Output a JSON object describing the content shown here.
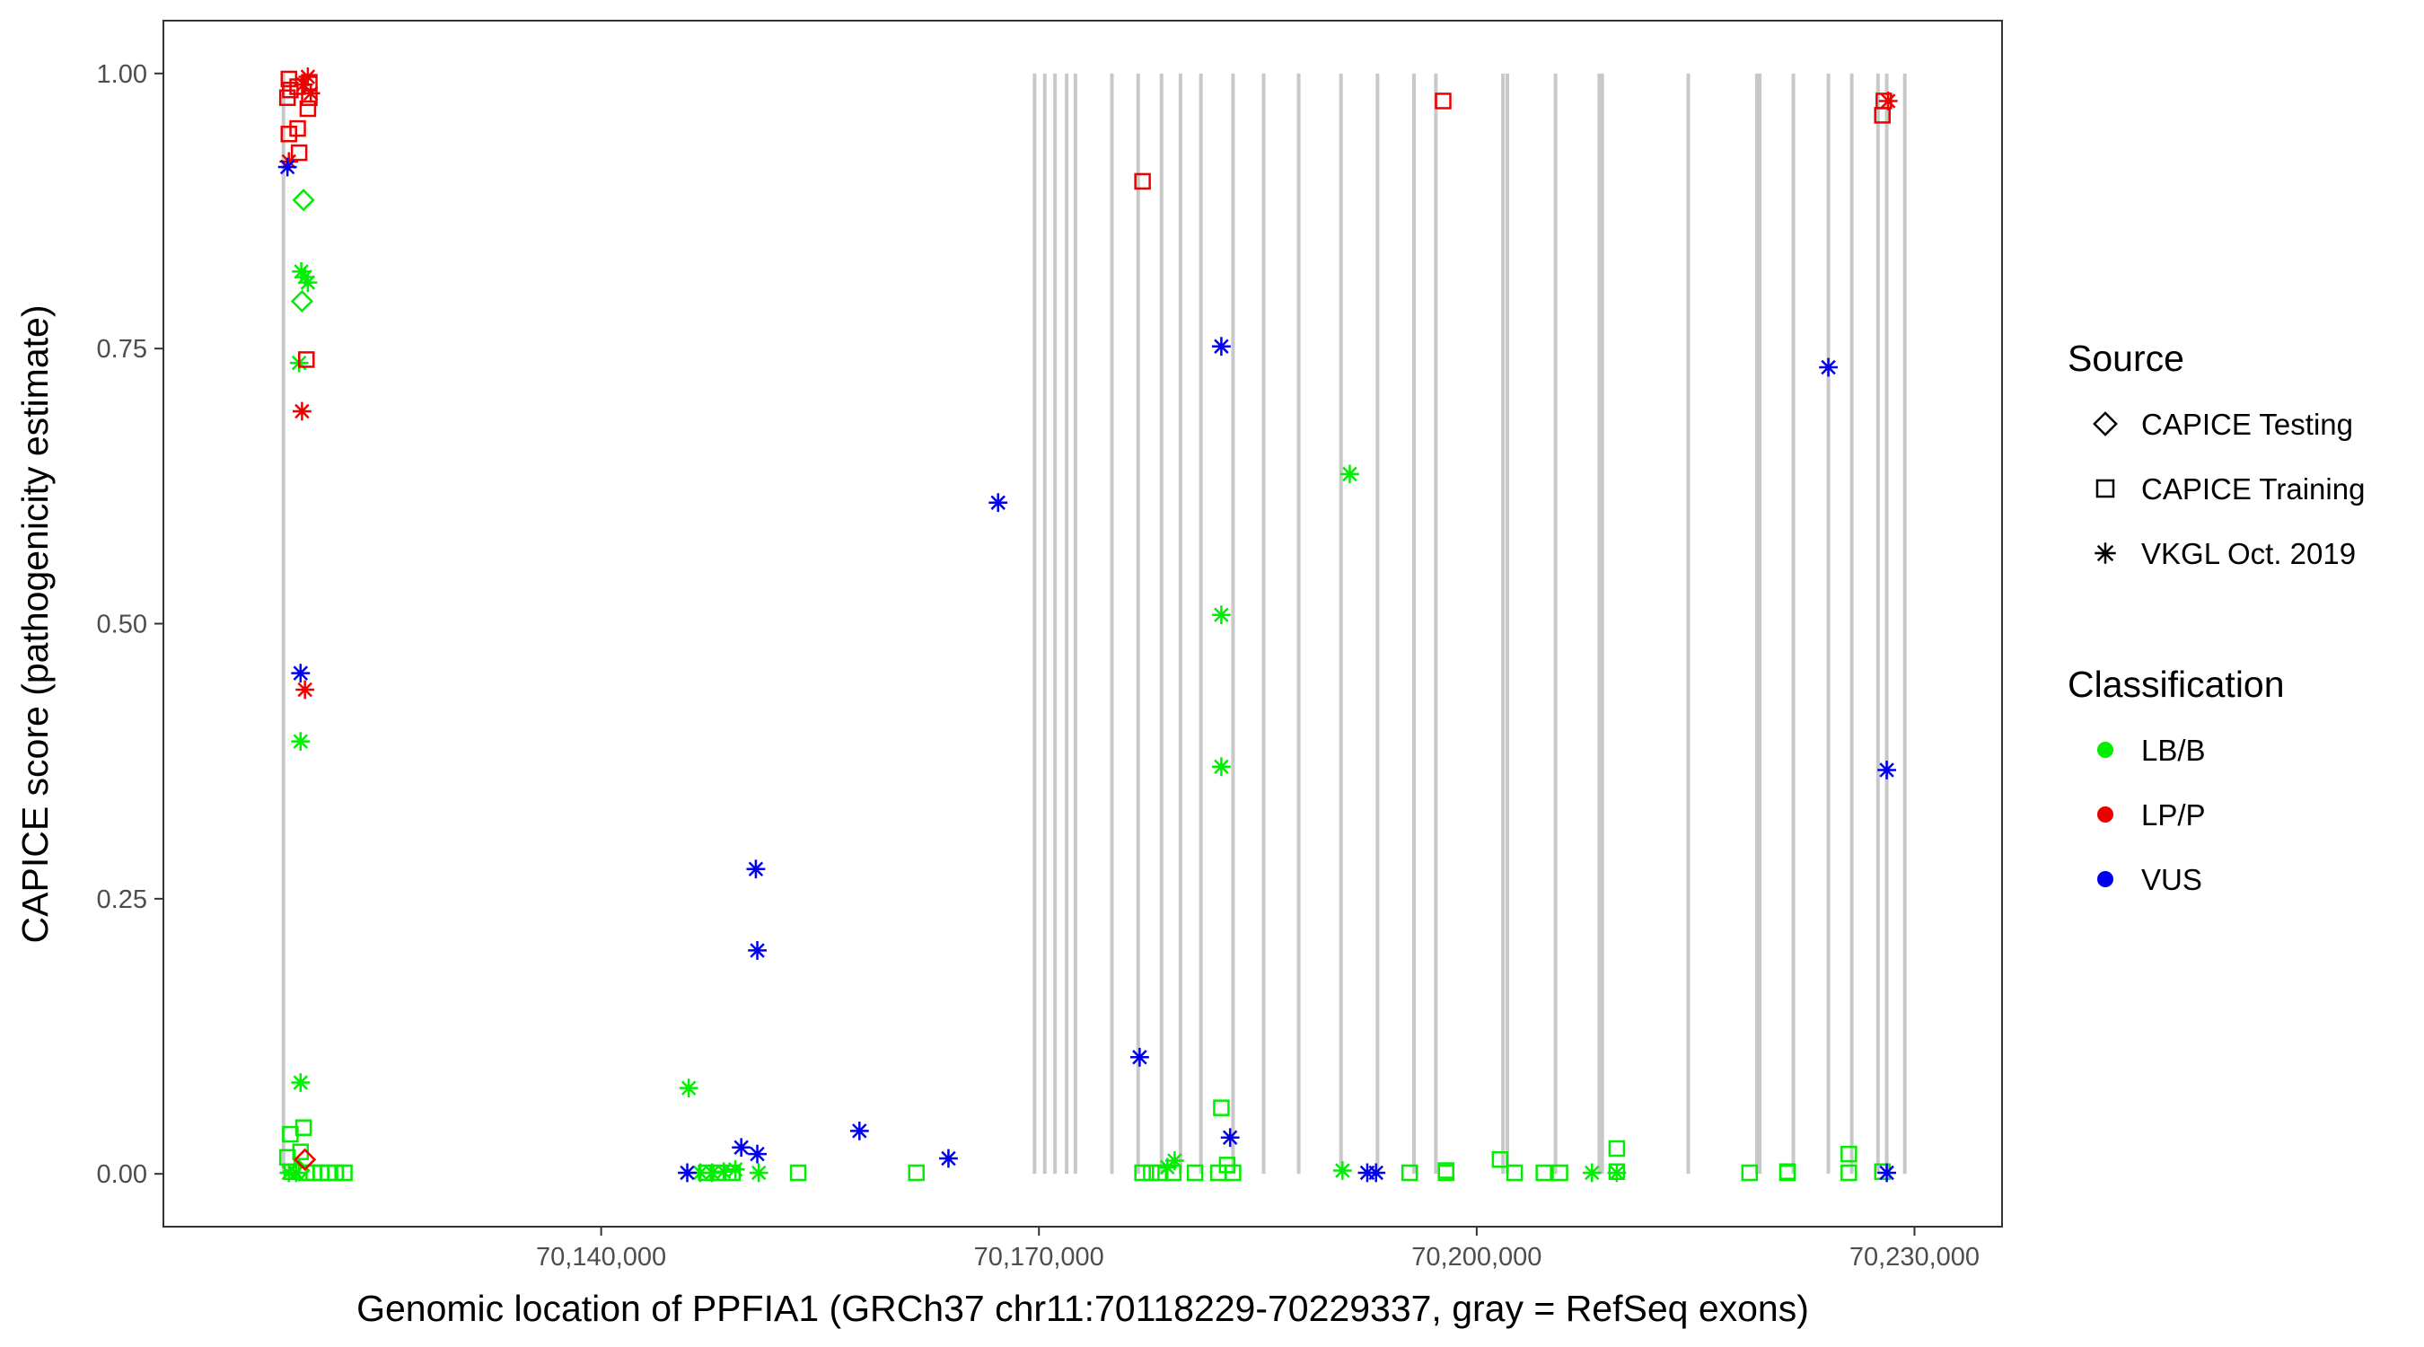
{
  "chart_data": {
    "type": "scatter",
    "title": "",
    "xlabel": "Genomic location of PPFIA1 (GRCh37 chr11:70118229-70229337, gray = RefSeq exons)",
    "ylabel": "CAPICE score (pathogenicity estimate)",
    "xlim": [
      70110000,
      70236000
    ],
    "ylim": [
      -0.048,
      1.048
    ],
    "xticks": [
      {
        "value": 70140000,
        "label": "70,140,000"
      },
      {
        "value": 70170000,
        "label": "70,170,000"
      },
      {
        "value": 70200000,
        "label": "70,200,000"
      },
      {
        "value": 70230000,
        "label": "70,230,000"
      }
    ],
    "yticks": [
      {
        "value": 0,
        "label": "0.00"
      },
      {
        "value": 0.25,
        "label": "0.25"
      },
      {
        "value": 0.5,
        "label": "0.50"
      },
      {
        "value": 0.75,
        "label": "0.75"
      },
      {
        "value": 1.0,
        "label": "1.00"
      }
    ],
    "grid": false,
    "exon_color": "#c8c8c8",
    "exons": [
      70118229,
      70169700,
      70170400,
      70171100,
      70171900,
      70172500,
      70175000,
      70176800,
      70178400,
      70179700,
      70181100,
      70183300,
      70185400,
      70187800,
      70190700,
      70193200,
      70195700,
      70197200,
      70201800,
      70202100,
      70205400,
      70208400,
      70208600,
      70214500,
      70219200,
      70219400,
      70221700,
      70224100,
      70225700,
      70227500,
      70228100,
      70229337
    ],
    "legend": {
      "placement": "right",
      "source": {
        "title": "Source",
        "items": [
          {
            "name": "CAPICE Testing",
            "shape": "diamond"
          },
          {
            "name": "CAPICE Training",
            "shape": "square"
          },
          {
            "name": "VKGL Oct. 2019",
            "shape": "asterisk"
          }
        ]
      },
      "classification": {
        "title": "Classification",
        "items": [
          {
            "name": "LB/B",
            "color": "#00ee00"
          },
          {
            "name": "LP/P",
            "color": "#ee0000"
          },
          {
            "name": "VUS",
            "color": "#0000ee"
          }
        ]
      }
    },
    "series": [
      {
        "name": "LB/B",
        "color": "#00ee00",
        "points": [
          {
            "x": 70119600,
            "y": 0.885,
            "source": "diamond"
          },
          {
            "x": 70119500,
            "y": 0.793,
            "source": "diamond"
          },
          {
            "x": 70119450,
            "y": 0.82,
            "source": "asterisk"
          },
          {
            "x": 70119900,
            "y": 0.81,
            "source": "asterisk"
          },
          {
            "x": 70119700,
            "y": 0.815,
            "source": "asterisk"
          },
          {
            "x": 70119300,
            "y": 0.737,
            "source": "asterisk"
          },
          {
            "x": 70119400,
            "y": 0.393,
            "source": "asterisk"
          },
          {
            "x": 70119400,
            "y": 0.083,
            "source": "asterisk"
          },
          {
            "x": 70118700,
            "y": 0.036,
            "source": "square"
          },
          {
            "x": 70119600,
            "y": 0.042,
            "source": "square"
          },
          {
            "x": 70118500,
            "y": 0.015,
            "source": "square"
          },
          {
            "x": 70119400,
            "y": 0.02,
            "source": "square"
          },
          {
            "x": 70118800,
            "y": 0.002,
            "source": "square"
          },
          {
            "x": 70119800,
            "y": 0.001,
            "source": "square"
          },
          {
            "x": 70120300,
            "y": 0.001,
            "source": "square"
          },
          {
            "x": 70120800,
            "y": 0.001,
            "source": "square"
          },
          {
            "x": 70121300,
            "y": 0.001,
            "source": "square"
          },
          {
            "x": 70121800,
            "y": 0.001,
            "source": "square"
          },
          {
            "x": 70122400,
            "y": 0.001,
            "source": "square"
          },
          {
            "x": 70118600,
            "y": 0.001,
            "source": "asterisk"
          },
          {
            "x": 70119100,
            "y": 0.001,
            "source": "asterisk"
          },
          {
            "x": 70119300,
            "y": 0.003,
            "source": "diamond"
          },
          {
            "x": 70146000,
            "y": 0.078,
            "source": "asterisk"
          },
          {
            "x": 70146800,
            "y": 0.001,
            "source": "asterisk"
          },
          {
            "x": 70147600,
            "y": 0.001,
            "source": "asterisk"
          },
          {
            "x": 70148400,
            "y": 0.002,
            "source": "asterisk"
          },
          {
            "x": 70149200,
            "y": 0.004,
            "source": "asterisk"
          },
          {
            "x": 70150800,
            "y": 0.001,
            "source": "asterisk"
          },
          {
            "x": 70147200,
            "y": 0.001,
            "source": "square"
          },
          {
            "x": 70148000,
            "y": 0.001,
            "source": "square"
          },
          {
            "x": 70149000,
            "y": 0.001,
            "source": "square"
          },
          {
            "x": 70153500,
            "y": 0.001,
            "source": "square"
          },
          {
            "x": 70161600,
            "y": 0.001,
            "source": "square"
          },
          {
            "x": 70177100,
            "y": 0.001,
            "source": "square"
          },
          {
            "x": 70177700,
            "y": 0.001,
            "source": "square"
          },
          {
            "x": 70178300,
            "y": 0.001,
            "source": "square"
          },
          {
            "x": 70179200,
            "y": 0.001,
            "source": "square"
          },
          {
            "x": 70180700,
            "y": 0.001,
            "source": "square"
          },
          {
            "x": 70178800,
            "y": 0.006,
            "source": "asterisk"
          },
          {
            "x": 70179300,
            "y": 0.012,
            "source": "asterisk"
          },
          {
            "x": 70182500,
            "y": 0.06,
            "source": "square"
          },
          {
            "x": 70182900,
            "y": 0.008,
            "source": "square"
          },
          {
            "x": 70182300,
            "y": 0.001,
            "source": "square"
          },
          {
            "x": 70183300,
            "y": 0.001,
            "source": "square"
          },
          {
            "x": 70182500,
            "y": 0.508,
            "source": "asterisk"
          },
          {
            "x": 70182500,
            "y": 0.37,
            "source": "asterisk"
          },
          {
            "x": 70191300,
            "y": 0.636,
            "source": "asterisk"
          },
          {
            "x": 70190800,
            "y": 0.003,
            "source": "asterisk"
          },
          {
            "x": 70195400,
            "y": 0.001,
            "source": "square"
          },
          {
            "x": 70197900,
            "y": 0.003,
            "source": "square"
          },
          {
            "x": 70197900,
            "y": 0.001,
            "source": "square"
          },
          {
            "x": 70201600,
            "y": 0.013,
            "source": "square"
          },
          {
            "x": 70202600,
            "y": 0.001,
            "source": "square"
          },
          {
            "x": 70204600,
            "y": 0.001,
            "source": "square"
          },
          {
            "x": 70205700,
            "y": 0.001,
            "source": "square"
          },
          {
            "x": 70207900,
            "y": 0.001,
            "source": "asterisk"
          },
          {
            "x": 70209600,
            "y": 0.023,
            "source": "square"
          },
          {
            "x": 70209600,
            "y": 0.002,
            "source": "square"
          },
          {
            "x": 70209600,
            "y": 0.001,
            "source": "asterisk"
          },
          {
            "x": 70218700,
            "y": 0.001,
            "source": "square"
          },
          {
            "x": 70221300,
            "y": 0.002,
            "source": "square"
          },
          {
            "x": 70221300,
            "y": 0.001,
            "source": "square"
          },
          {
            "x": 70225500,
            "y": 0.018,
            "source": "square"
          },
          {
            "x": 70225500,
            "y": 0.001,
            "source": "square"
          },
          {
            "x": 70227800,
            "y": 0.002,
            "source": "square"
          }
        ]
      },
      {
        "name": "LP/P",
        "color": "#ee0000",
        "points": [
          {
            "x": 70118600,
            "y": 0.995,
            "source": "square"
          },
          {
            "x": 70118700,
            "y": 0.985,
            "source": "square"
          },
          {
            "x": 70118500,
            "y": 0.978,
            "source": "square"
          },
          {
            "x": 70119200,
            "y": 0.988,
            "source": "square"
          },
          {
            "x": 70120000,
            "y": 0.992,
            "source": "square"
          },
          {
            "x": 70120000,
            "y": 0.978,
            "source": "square"
          },
          {
            "x": 70119900,
            "y": 0.968,
            "source": "square"
          },
          {
            "x": 70119600,
            "y": 0.99,
            "source": "asterisk"
          },
          {
            "x": 70119900,
            "y": 0.997,
            "source": "asterisk"
          },
          {
            "x": 70120100,
            "y": 0.982,
            "source": "asterisk"
          },
          {
            "x": 70119200,
            "y": 0.95,
            "source": "square"
          },
          {
            "x": 70118600,
            "y": 0.945,
            "source": "square"
          },
          {
            "x": 70119300,
            "y": 0.928,
            "source": "square"
          },
          {
            "x": 70118600,
            "y": 0.92,
            "source": "asterisk"
          },
          {
            "x": 70119800,
            "y": 0.74,
            "source": "square"
          },
          {
            "x": 70119500,
            "y": 0.693,
            "source": "asterisk"
          },
          {
            "x": 70119700,
            "y": 0.44,
            "source": "asterisk"
          },
          {
            "x": 70119700,
            "y": 0.013,
            "source": "diamond"
          },
          {
            "x": 70177100,
            "y": 0.902,
            "source": "square"
          },
          {
            "x": 70197700,
            "y": 0.975,
            "source": "square"
          },
          {
            "x": 70227900,
            "y": 0.975,
            "source": "square"
          },
          {
            "x": 70227800,
            "y": 0.962,
            "source": "square"
          },
          {
            "x": 70228200,
            "y": 0.975,
            "source": "asterisk"
          }
        ]
      },
      {
        "name": "VUS",
        "color": "#0000ee",
        "points": [
          {
            "x": 70118500,
            "y": 0.915,
            "source": "asterisk"
          },
          {
            "x": 70119400,
            "y": 0.455,
            "source": "asterisk"
          },
          {
            "x": 70145900,
            "y": 0.001,
            "source": "asterisk"
          },
          {
            "x": 70149600,
            "y": 0.024,
            "source": "asterisk"
          },
          {
            "x": 70150700,
            "y": 0.018,
            "source": "asterisk"
          },
          {
            "x": 70150600,
            "y": 0.277,
            "source": "asterisk"
          },
          {
            "x": 70150700,
            "y": 0.203,
            "source": "asterisk"
          },
          {
            "x": 70157700,
            "y": 0.039,
            "source": "asterisk"
          },
          {
            "x": 70163800,
            "y": 0.014,
            "source": "asterisk"
          },
          {
            "x": 70167200,
            "y": 0.61,
            "source": "asterisk"
          },
          {
            "x": 70176900,
            "y": 0.106,
            "source": "asterisk"
          },
          {
            "x": 70182500,
            "y": 0.752,
            "source": "asterisk"
          },
          {
            "x": 70183100,
            "y": 0.033,
            "source": "asterisk"
          },
          {
            "x": 70192500,
            "y": 0.001,
            "source": "asterisk"
          },
          {
            "x": 70193100,
            "y": 0.001,
            "source": "asterisk"
          },
          {
            "x": 70224100,
            "y": 0.733,
            "source": "asterisk"
          },
          {
            "x": 70228100,
            "y": 0.367,
            "source": "asterisk"
          },
          {
            "x": 70228100,
            "y": 0.001,
            "source": "asterisk"
          }
        ]
      }
    ]
  }
}
